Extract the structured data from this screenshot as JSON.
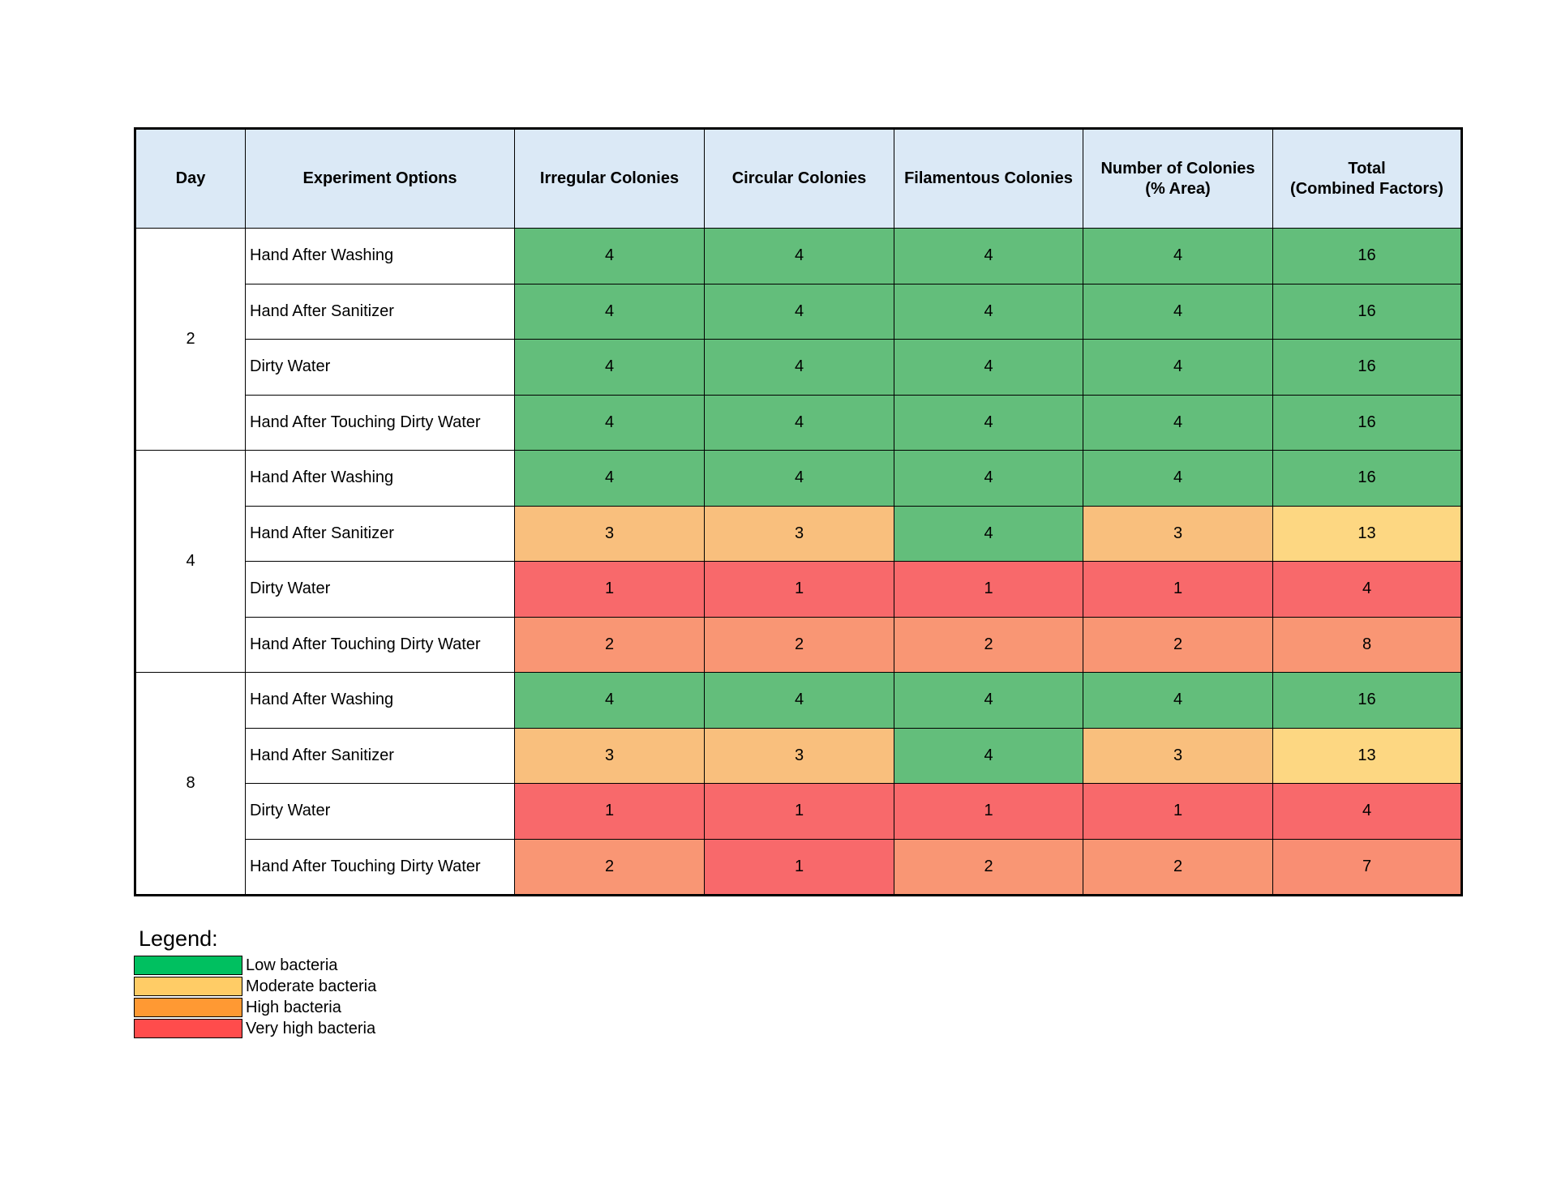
{
  "colors": {
    "header_bg": "#dbe9f6",
    "cell_4": "#63be7b",
    "cell_3": "#f9bf7d",
    "cell_2": "#f99674",
    "cell_1": "#f8696b",
    "total_16": "#63be7b",
    "total_13": "#fdd782",
    "total_8": "#f99674",
    "total_7": "#f98e73",
    "total_4": "#f8696b"
  },
  "chart_data": {
    "type": "heatmap",
    "columns": [
      "Day",
      "Experiment Options",
      "Irregular Colonies",
      "Circular Colonies",
      "Filamentous Colonies",
      "Number of Colonies\n(% Area)",
      "Total\n(Combined Factors)"
    ],
    "groups": [
      {
        "day": "2",
        "rows": [
          {
            "option": "Hand After Washing",
            "values": [
              4,
              4,
              4,
              4
            ],
            "total": 16
          },
          {
            "option": "Hand After Sanitizer",
            "values": [
              4,
              4,
              4,
              4
            ],
            "total": 16
          },
          {
            "option": "Dirty Water",
            "values": [
              4,
              4,
              4,
              4
            ],
            "total": 16
          },
          {
            "option": "Hand After Touching Dirty Water",
            "values": [
              4,
              4,
              4,
              4
            ],
            "total": 16
          }
        ]
      },
      {
        "day": "4",
        "rows": [
          {
            "option": "Hand After Washing",
            "values": [
              4,
              4,
              4,
              4
            ],
            "total": 16
          },
          {
            "option": "Hand After Sanitizer",
            "values": [
              3,
              3,
              4,
              3
            ],
            "total": 13
          },
          {
            "option": "Dirty Water",
            "values": [
              1,
              1,
              1,
              1
            ],
            "total": 4
          },
          {
            "option": "Hand After Touching Dirty Water",
            "values": [
              2,
              2,
              2,
              2
            ],
            "total": 8
          }
        ]
      },
      {
        "day": "8",
        "rows": [
          {
            "option": "Hand After Washing",
            "values": [
              4,
              4,
              4,
              4
            ],
            "total": 16
          },
          {
            "option": "Hand After Sanitizer",
            "values": [
              3,
              3,
              4,
              3
            ],
            "total": 13
          },
          {
            "option": "Dirty Water",
            "values": [
              1,
              1,
              1,
              1
            ],
            "total": 4
          },
          {
            "option": "Hand After Touching Dirty Water",
            "values": [
              2,
              1,
              2,
              2
            ],
            "total": 7
          }
        ]
      }
    ]
  },
  "legend": {
    "title": "Legend:",
    "items": [
      {
        "label": "Low bacteria",
        "color": "#00c060"
      },
      {
        "label": "Moderate bacteria",
        "color": "#ffcc66"
      },
      {
        "label": "High bacteria",
        "color": "#ff9933"
      },
      {
        "label": "Very high bacteria",
        "color": "#ff4c4c"
      }
    ]
  }
}
